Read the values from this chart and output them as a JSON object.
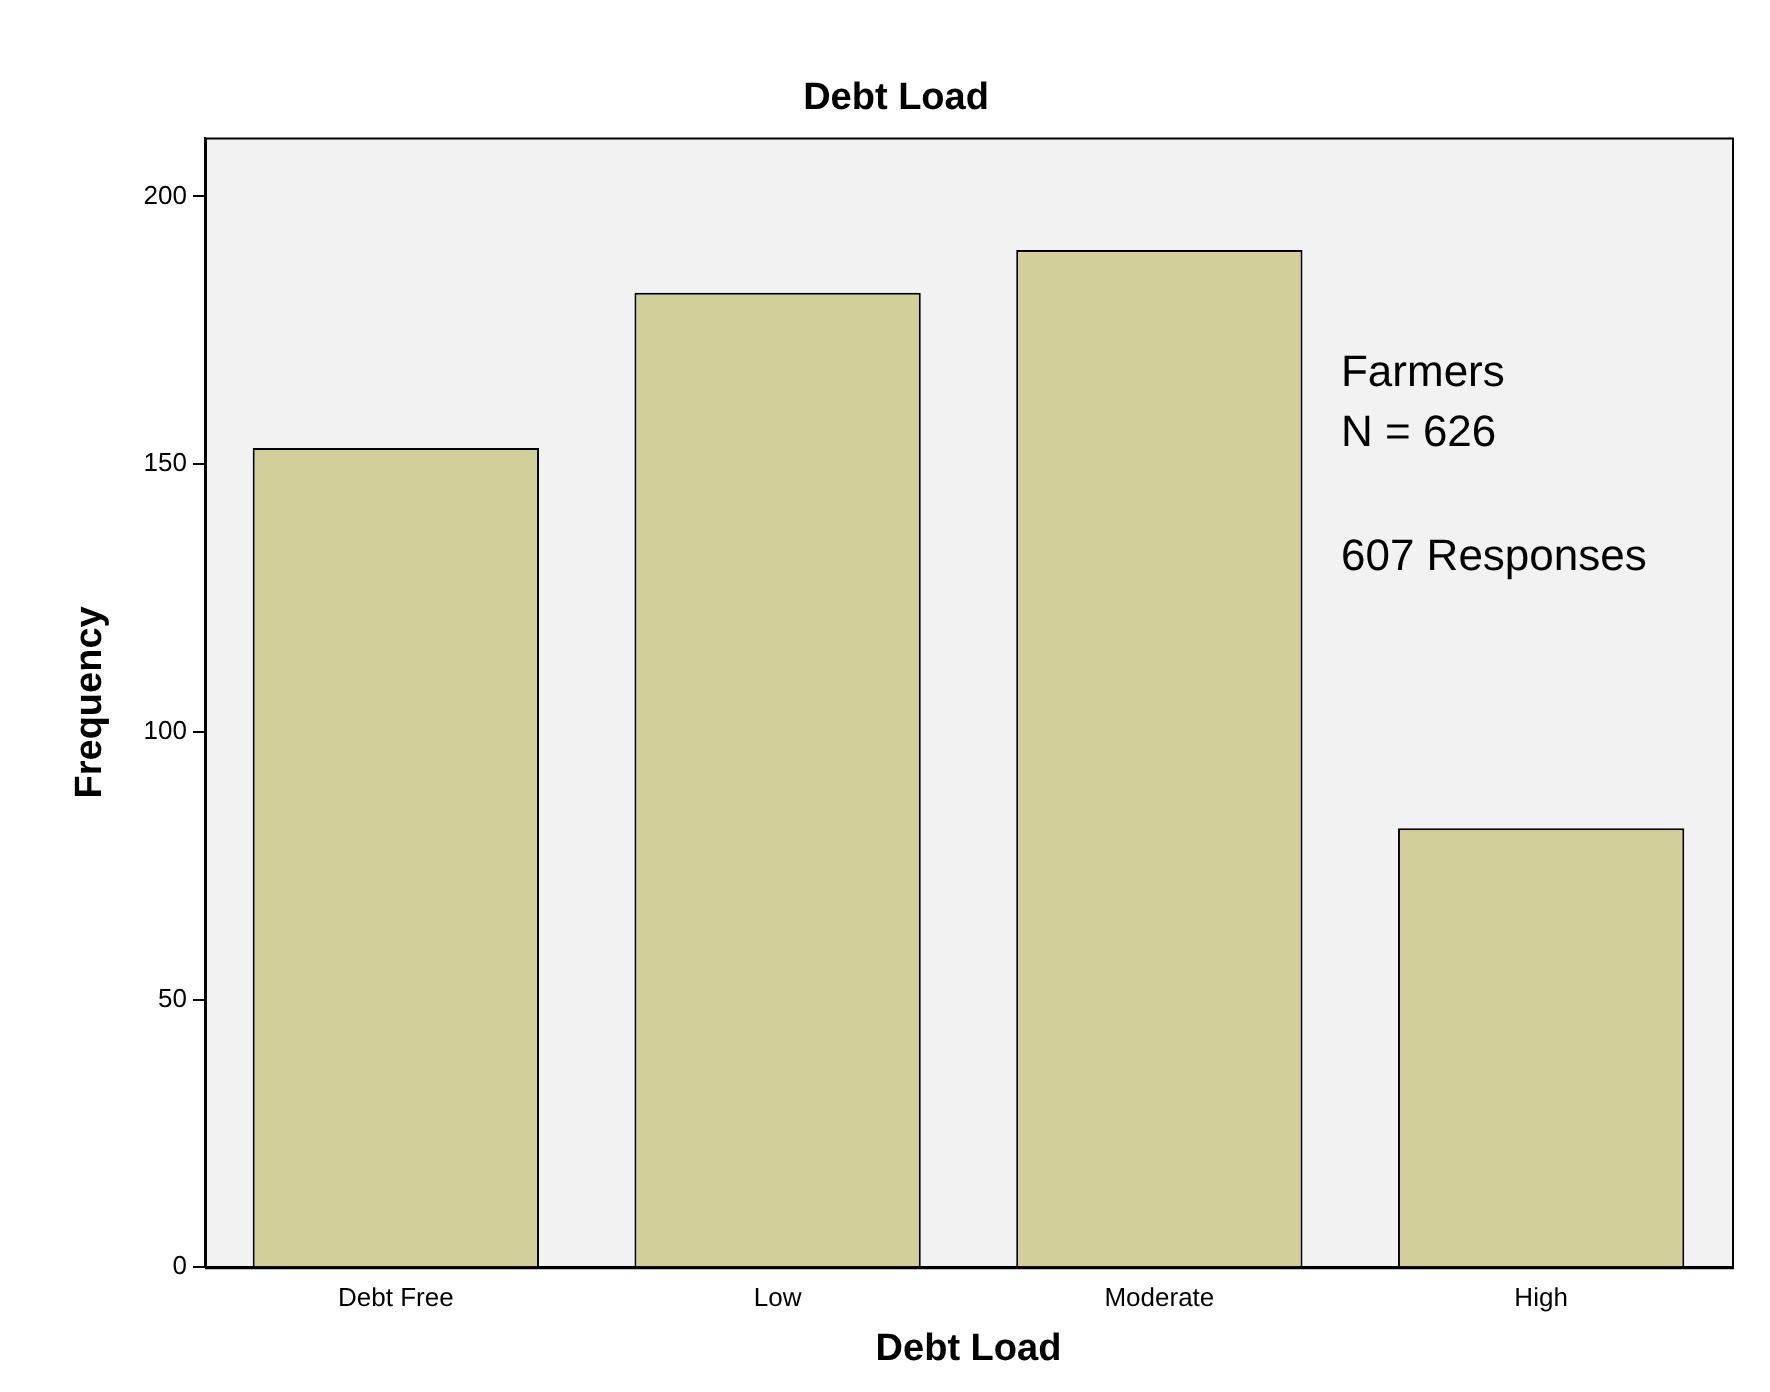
{
  "chart_data": {
    "type": "bar",
    "title": "Debt Load",
    "xlabel": "Debt Load",
    "ylabel": "Frequency",
    "categories": [
      "Debt Free",
      "Low",
      "Moderate",
      "High"
    ],
    "values": [
      153,
      182,
      190,
      82
    ],
    "color": "#d3cf9a",
    "ylim": [
      0,
      211
    ],
    "yticks": [
      0,
      50,
      100,
      150,
      200
    ],
    "grid": false,
    "legend": false,
    "annotations": [
      "Farmers",
      "N = 626",
      "607 Responses"
    ]
  }
}
